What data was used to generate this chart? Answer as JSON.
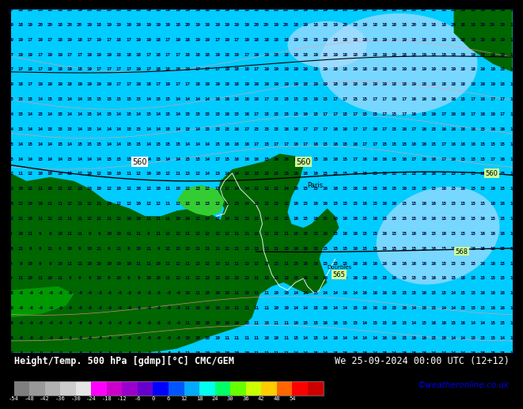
{
  "title_left": "Height/Temp. 500 hPa [gdmp][°C] CMC/GEM",
  "title_right": "We 25-09-2024 00:00 UTC (12+12)",
  "credit": "©weatheronline.co.uk",
  "colorbar_values": [
    -54,
    -48,
    -42,
    -36,
    -30,
    -24,
    -18,
    -12,
    -6,
    0,
    6,
    12,
    18,
    24,
    30,
    36,
    42,
    48,
    54
  ],
  "colorbar_colors": [
    "#7f7f7f",
    "#999999",
    "#b2b2b2",
    "#cccccc",
    "#e5e5e5",
    "#ff00ff",
    "#cc00cc",
    "#9900cc",
    "#6600cc",
    "#0000ff",
    "#0055ff",
    "#00aaff",
    "#00ffee",
    "#00ff66",
    "#66ff00",
    "#ccff00",
    "#ffcc00",
    "#ff6600",
    "#ff0000",
    "#cc0000"
  ],
  "ocean_color": "#00ccff",
  "ocean_light_color": "#aaddff",
  "land_dark_color": "#006600",
  "land_mid_color": "#009900",
  "land_light_color": "#33cc33",
  "contour_color_black": "#000000",
  "contour_color_pink": "#ff8888",
  "contour_color_white": "#ffffff",
  "number_color_dark": "#000033",
  "title_fontsize": 8.5,
  "credit_fontsize": 7.5,
  "credit_color": "#0000ee"
}
